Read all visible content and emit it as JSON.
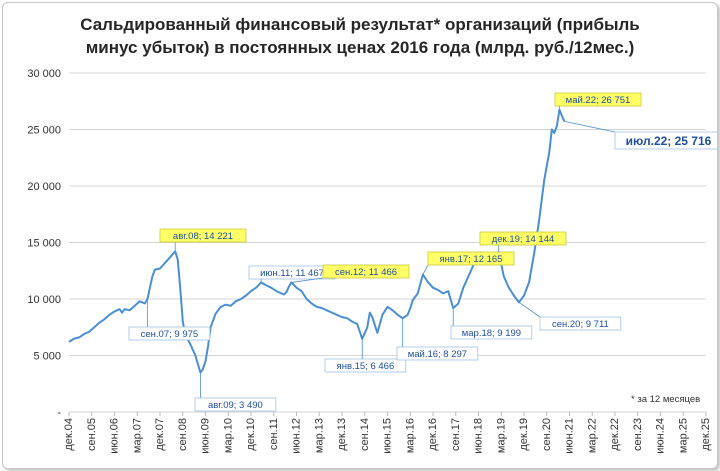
{
  "chart_data": {
    "type": "line",
    "title_line1": "Сальдированный финансовый результат* организаций (прибыль",
    "title_line2": "минус убыток) в постоянных ценах 2016 года (млрд. руб./12мес.)",
    "footnote": "* за 12 месяцев",
    "ylim": [
      0,
      30000
    ],
    "y_ticks": [
      "-",
      "5 000",
      "10 000",
      "15 000",
      "20 000",
      "25 000",
      "30 000"
    ],
    "x_ticks": [
      "дек.04",
      "сен.05",
      "июн.06",
      "мар.07",
      "дек.07",
      "сен.08",
      "июн.09",
      "мар.10",
      "дек.10",
      "сен.11",
      "июн.12",
      "мар.13",
      "дек.13",
      "сен.14",
      "июн.15",
      "мар.16",
      "дек.16",
      "сен.17",
      "июн.18",
      "мар.19",
      "дек.19",
      "сен.20",
      "июн.21",
      "мар.22",
      "дек.22",
      "сен.23",
      "июн.24",
      "мар.25",
      "дек.25"
    ],
    "grid": true,
    "line_color": "#4a8fd4",
    "series": [
      {
        "points": [
          [
            0,
            6200
          ],
          [
            2,
            6500
          ],
          [
            4,
            6600
          ],
          [
            6,
            6900
          ],
          [
            8,
            7100
          ],
          [
            10,
            7500
          ],
          [
            12,
            7900
          ],
          [
            14,
            8200
          ],
          [
            16,
            8600
          ],
          [
            18,
            8900
          ],
          [
            20,
            9100
          ],
          [
            21,
            8800
          ],
          [
            22,
            9100
          ],
          [
            24,
            9000
          ],
          [
            26,
            9400
          ],
          [
            28,
            9800
          ],
          [
            30,
            9600
          ],
          [
            31,
            9975
          ],
          [
            32,
            11000
          ],
          [
            33,
            12000
          ],
          [
            34,
            12600
          ],
          [
            36,
            12700
          ],
          [
            38,
            13200
          ],
          [
            40,
            13700
          ],
          [
            42,
            14221
          ],
          [
            43,
            13500
          ],
          [
            44,
            11000
          ],
          [
            45,
            8000
          ],
          [
            46,
            6800
          ],
          [
            48,
            6000
          ],
          [
            50,
            5000
          ],
          [
            52,
            3490
          ],
          [
            53,
            3800
          ],
          [
            54,
            4500
          ],
          [
            55,
            5800
          ],
          [
            56,
            7500
          ],
          [
            58,
            8700
          ],
          [
            60,
            9300
          ],
          [
            62,
            9500
          ],
          [
            64,
            9400
          ],
          [
            66,
            9800
          ],
          [
            68,
            10000
          ],
          [
            70,
            10300
          ],
          [
            72,
            10700
          ],
          [
            74,
            11000
          ],
          [
            76,
            11467
          ],
          [
            78,
            11200
          ],
          [
            80,
            11000
          ],
          [
            82,
            10700
          ],
          [
            84,
            10500
          ],
          [
            85,
            10400
          ],
          [
            86,
            10600
          ],
          [
            87,
            11100
          ],
          [
            88,
            11466
          ],
          [
            90,
            11000
          ],
          [
            92,
            10700
          ],
          [
            94,
            10000
          ],
          [
            96,
            9600
          ],
          [
            98,
            9300
          ],
          [
            100,
            9200
          ],
          [
            102,
            9000
          ],
          [
            104,
            8800
          ],
          [
            106,
            8600
          ],
          [
            108,
            8400
          ],
          [
            110,
            8300
          ],
          [
            112,
            8000
          ],
          [
            114,
            7800
          ],
          [
            116,
            6466
          ],
          [
            118,
            7500
          ],
          [
            119,
            8800
          ],
          [
            120,
            8400
          ],
          [
            122,
            7000
          ],
          [
            124,
            8600
          ],
          [
            126,
            9300
          ],
          [
            128,
            9000
          ],
          [
            130,
            8600
          ],
          [
            132,
            8297
          ],
          [
            134,
            8600
          ],
          [
            135,
            9200
          ],
          [
            136,
            9900
          ],
          [
            138,
            10500
          ],
          [
            140,
            12165
          ],
          [
            142,
            11500
          ],
          [
            144,
            11000
          ],
          [
            146,
            10800
          ],
          [
            148,
            10500
          ],
          [
            150,
            10700
          ],
          [
            152,
            9199
          ],
          [
            154,
            9600
          ],
          [
            156,
            11000
          ],
          [
            158,
            12000
          ],
          [
            160,
            13000
          ],
          [
            162,
            13900
          ],
          [
            164,
            13500
          ],
          [
            166,
            13200
          ],
          [
            168,
            13500
          ],
          [
            170,
            14144
          ],
          [
            172,
            12000
          ],
          [
            174,
            11000
          ],
          [
            176,
            10300
          ],
          [
            178,
            9711
          ],
          [
            180,
            10300
          ],
          [
            182,
            11500
          ],
          [
            184,
            14000
          ],
          [
            186,
            17000
          ],
          [
            188,
            20500
          ],
          [
            190,
            23000
          ],
          [
            191,
            25000
          ],
          [
            192,
            24700
          ],
          [
            193,
            25300
          ],
          [
            194,
            26751
          ],
          [
            195,
            26200
          ],
          [
            196,
            25716
          ]
        ]
      }
    ],
    "annotations": [
      {
        "text": "сен.07;  9 975",
        "highlight": false
      },
      {
        "text": "авг.08;  14 221",
        "highlight": true
      },
      {
        "text": "авг.09;  3 490",
        "highlight": false
      },
      {
        "text": "июн.11;  11 467",
        "highlight": false
      },
      {
        "text": "сен.12;  11 466",
        "highlight": true
      },
      {
        "text": "янв.15;  6 466",
        "highlight": false
      },
      {
        "text": "май.16;  8 297",
        "highlight": false
      },
      {
        "text": "янв.17;  12 165",
        "highlight": true
      },
      {
        "text": "мар.18;  9 199",
        "highlight": false
      },
      {
        "text": "дек.19;  14 144",
        "highlight": true
      },
      {
        "text": "сен.20;  9 711",
        "highlight": false
      },
      {
        "text": "май.22;  26 751",
        "highlight": true
      },
      {
        "text": "июл.22;  25 716",
        "highlight": false,
        "emphasis": true
      }
    ]
  }
}
